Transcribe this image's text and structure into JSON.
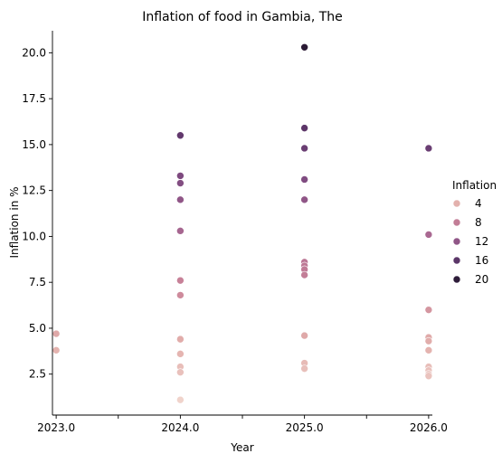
{
  "chart_data": {
    "type": "scatter",
    "title": "Inflation of food in Gambia, The",
    "xlabel": "Year",
    "ylabel": "Inflation in %",
    "xlim": [
      2022.97,
      2026.03
    ],
    "ylim": [
      0.27,
      21.2
    ],
    "x_ticks": [
      2023.0,
      2023.5,
      2024.0,
      2024.5,
      2025.0,
      2025.5,
      2026.0
    ],
    "x_tick_labels": [
      "2023.0",
      "",
      "2024.0",
      "",
      "2025.0",
      "",
      "2026.0"
    ],
    "y_ticks": [
      2.5,
      5.0,
      7.5,
      10.0,
      12.5,
      15.0,
      17.5,
      20.0
    ],
    "y_tick_labels": [
      "2.5",
      "5.0",
      "7.5",
      "10.0",
      "12.5",
      "15.0",
      "17.5",
      "20.0"
    ],
    "grid": false,
    "legend": {
      "title": "Inflation",
      "placement": "right",
      "entries": [
        {
          "label": "4",
          "value": 4
        },
        {
          "label": "8",
          "value": 8
        },
        {
          "label": "12",
          "value": 12
        },
        {
          "label": "16",
          "value": 16
        },
        {
          "label": "20",
          "value": 20
        }
      ]
    },
    "color_scale": {
      "domain": [
        1,
        20.3
      ],
      "stops": [
        "#f0d4cc",
        "#e2aeab",
        "#c98398",
        "#a2628f",
        "#76457c",
        "#4e2e5e",
        "#2b1a35"
      ]
    },
    "points": [
      {
        "x": 2023.0,
        "y": 4.7
      },
      {
        "x": 2023.0,
        "y": 3.8
      },
      {
        "x": 2024.0,
        "y": 15.5
      },
      {
        "x": 2024.0,
        "y": 13.3
      },
      {
        "x": 2024.0,
        "y": 12.9
      },
      {
        "x": 2024.0,
        "y": 12.0
      },
      {
        "x": 2024.0,
        "y": 10.3
      },
      {
        "x": 2024.0,
        "y": 7.6
      },
      {
        "x": 2024.0,
        "y": 6.8
      },
      {
        "x": 2024.0,
        "y": 4.4
      },
      {
        "x": 2024.0,
        "y": 3.6
      },
      {
        "x": 2024.0,
        "y": 2.9
      },
      {
        "x": 2024.0,
        "y": 2.6
      },
      {
        "x": 2024.0,
        "y": 1.1
      },
      {
        "x": 2025.0,
        "y": 20.3
      },
      {
        "x": 2025.0,
        "y": 15.9
      },
      {
        "x": 2025.0,
        "y": 14.8
      },
      {
        "x": 2025.0,
        "y": 13.1
      },
      {
        "x": 2025.0,
        "y": 12.0
      },
      {
        "x": 2025.0,
        "y": 8.6
      },
      {
        "x": 2025.0,
        "y": 8.4
      },
      {
        "x": 2025.0,
        "y": 8.2
      },
      {
        "x": 2025.0,
        "y": 7.9
      },
      {
        "x": 2025.0,
        "y": 4.6
      },
      {
        "x": 2025.0,
        "y": 3.1
      },
      {
        "x": 2025.0,
        "y": 2.8
      },
      {
        "x": 2026.0,
        "y": 14.8
      },
      {
        "x": 2026.0,
        "y": 10.1
      },
      {
        "x": 2026.0,
        "y": 6.0
      },
      {
        "x": 2026.0,
        "y": 4.5
      },
      {
        "x": 2026.0,
        "y": 4.3
      },
      {
        "x": 2026.0,
        "y": 3.8
      },
      {
        "x": 2026.0,
        "y": 2.9
      },
      {
        "x": 2026.0,
        "y": 2.7
      },
      {
        "x": 2026.0,
        "y": 2.5
      },
      {
        "x": 2026.0,
        "y": 2.4
      }
    ]
  }
}
